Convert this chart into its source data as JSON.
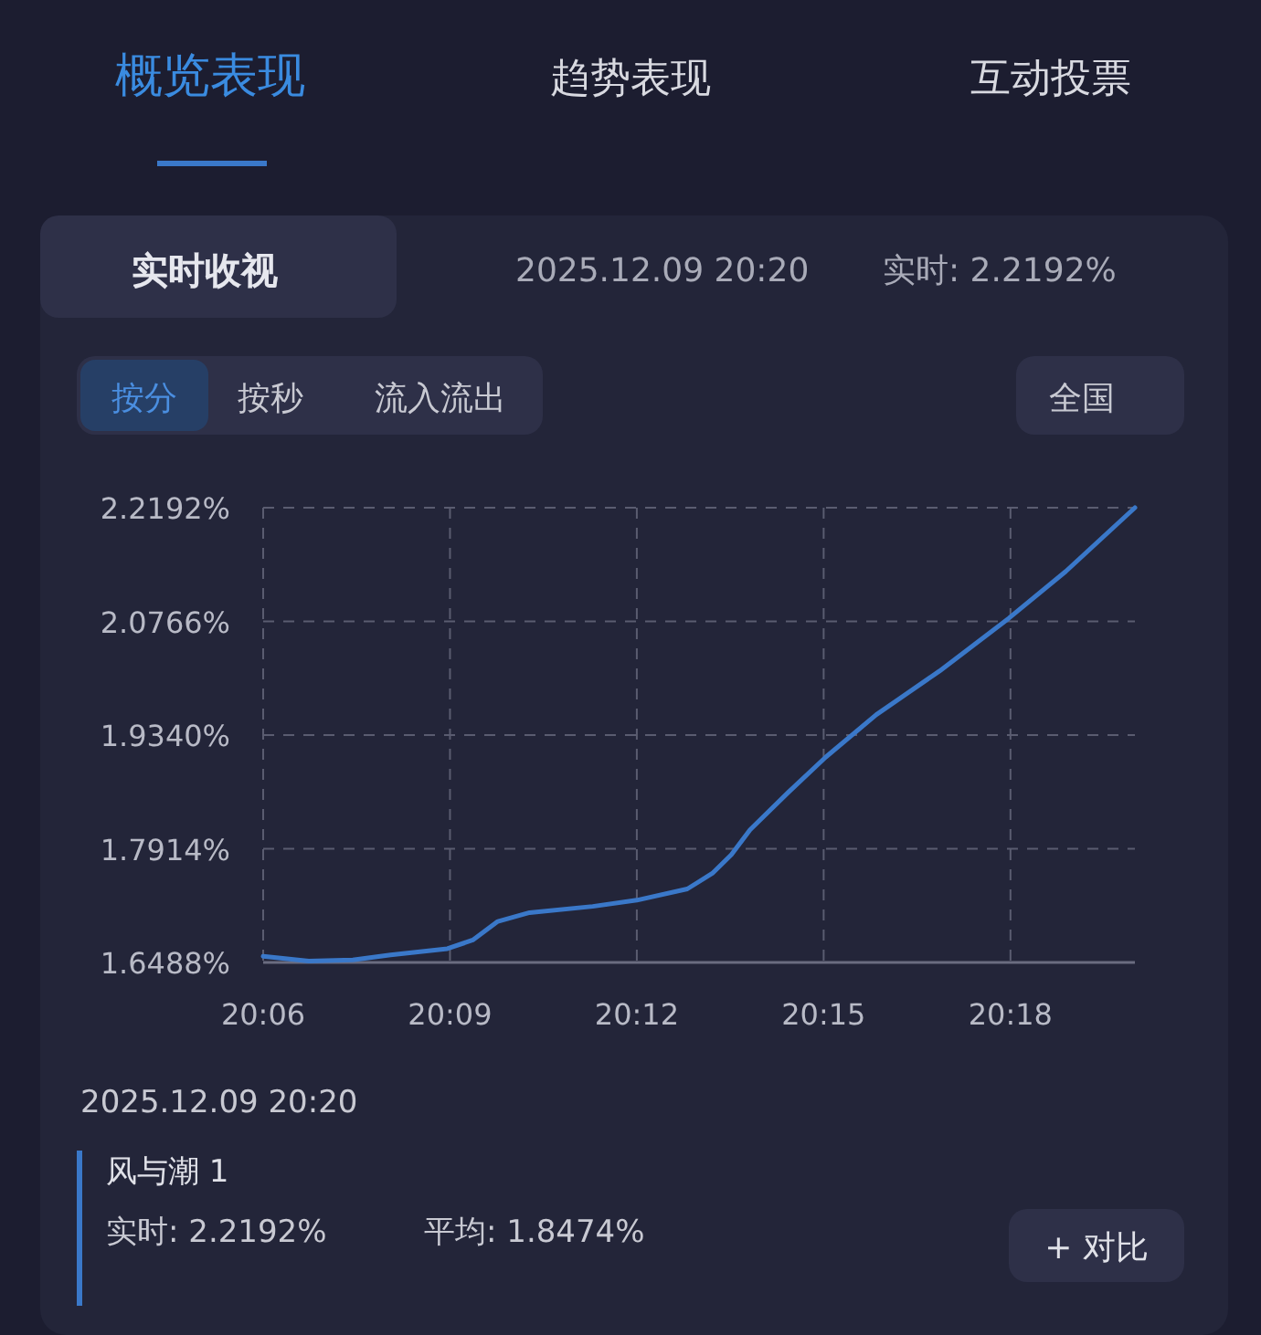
{
  "chart_data": {
    "type": "line",
    "title": "实时收视",
    "annotations": [
      "概览表现",
      "趋势表现",
      "互动投票",
      "2025.12.09 20:20",
      "实时: 2.2192%",
      "按分",
      "按秒",
      "流入流出",
      "全国",
      "2025.12.09 20:20",
      "风与潮 1",
      "实时: 2.2192%",
      "平均: 1.8474%",
      "+ 对比"
    ],
    "x": [
      20.1,
      20.1122,
      20.124,
      20.1341,
      20.1493,
      20.1561,
      20.1628,
      20.1713,
      20.1882,
      20.2,
      20.2135,
      20.2202,
      20.2253,
      20.2303,
      20.2405,
      20.2506,
      20.2641,
      20.281,
      20.2996,
      20.3148,
      20.3333
    ],
    "series": [
      {
        "color": "#3a78c9",
        "values": [
          1.6566,
          1.6504,
          1.6519,
          1.6582,
          1.666,
          1.6769,
          1.7003,
          1.7113,
          1.7191,
          1.7269,
          1.741,
          1.7605,
          1.7839,
          1.8152,
          1.862,
          1.9065,
          1.9596,
          2.0143,
          2.0807,
          2.1393,
          2.2192
        ]
      }
    ],
    "xlim": [
      20.1,
      20.3333
    ],
    "xticks": [
      {
        "value": 20.1,
        "label": "20:06"
      },
      {
        "value": 20.15,
        "label": "20:09"
      },
      {
        "value": 20.2,
        "label": "20:12"
      },
      {
        "value": 20.25,
        "label": "20:15"
      },
      {
        "value": 20.3,
        "label": "20:18"
      }
    ],
    "ylim": [
      1.6488,
      2.2192
    ],
    "yticks": [
      {
        "value": 1.6488,
        "label": "1.6488%"
      },
      {
        "value": 1.7914,
        "label": "1.7914%"
      },
      {
        "value": 1.934,
        "label": "1.9340%"
      },
      {
        "value": 2.0766,
        "label": "2.0766%"
      },
      {
        "value": 2.2192,
        "label": "2.2192%"
      }
    ],
    "grid": true,
    "marker": "none",
    "line_style": "solid"
  }
}
